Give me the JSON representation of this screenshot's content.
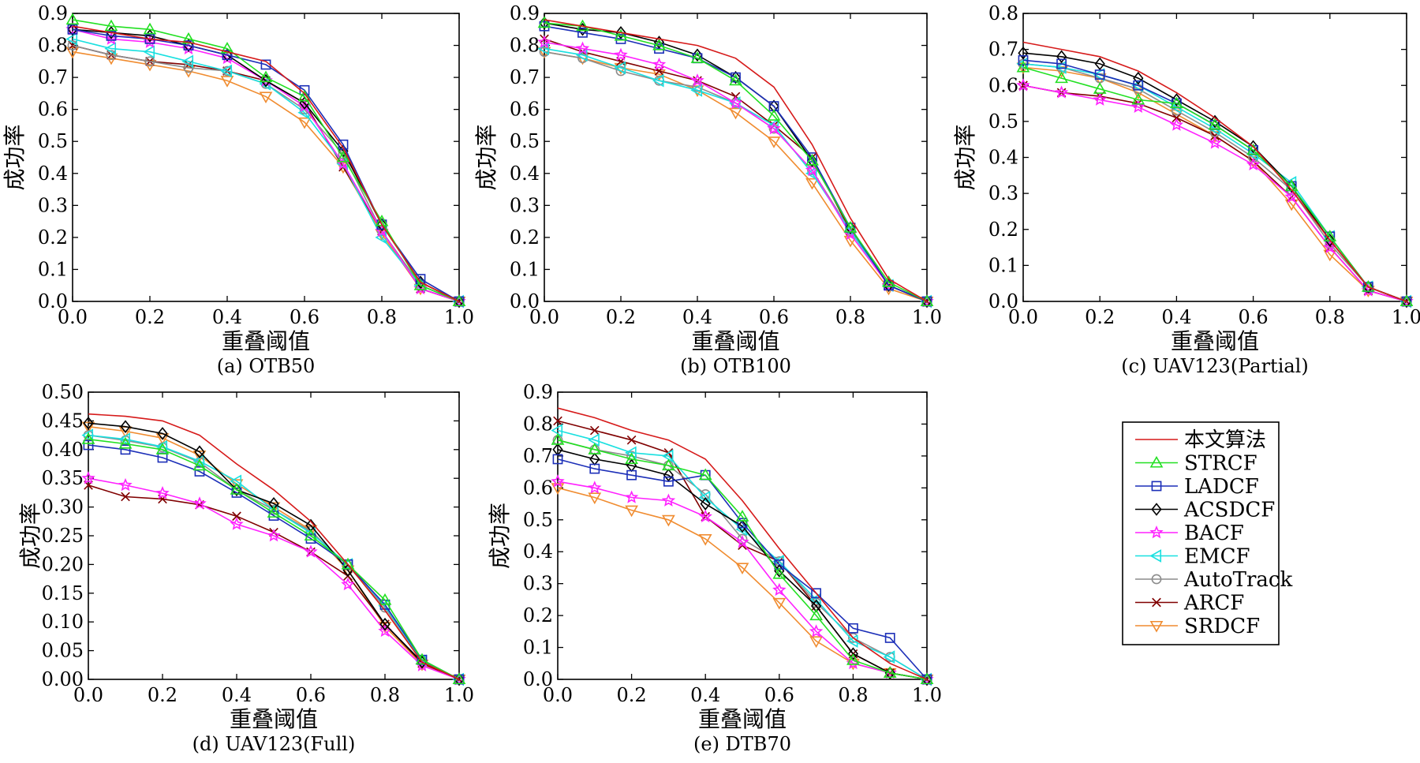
{
  "chart_data": [
    {
      "type": "line",
      "caption": "(a) OTB50",
      "xlabel": "重叠阈值",
      "ylabel": "成功率",
      "xlim": [
        0,
        1.0
      ],
      "ylim": [
        0,
        0.9
      ],
      "xticks": [
        "0.0",
        "0.2",
        "0.4",
        "0.6",
        "0.8",
        "1.0"
      ],
      "yticks": [
        "0.0",
        "0.1",
        "0.2",
        "0.3",
        "0.4",
        "0.5",
        "0.6",
        "0.7",
        "0.8",
        "0.9"
      ],
      "x": [
        0,
        0.1,
        0.2,
        0.3,
        0.4,
        0.5,
        0.6,
        0.7,
        0.8,
        0.9,
        1.0
      ],
      "series": [
        {
          "name": "本文算法",
          "values": [
            0.86,
            0.84,
            0.82,
            0.81,
            0.78,
            0.75,
            0.65,
            0.48,
            0.24,
            0.06,
            0.0
          ]
        },
        {
          "name": "STRCF",
          "values": [
            0.88,
            0.86,
            0.85,
            0.82,
            0.79,
            0.7,
            0.64,
            0.45,
            0.25,
            0.05,
            0.0
          ]
        },
        {
          "name": "LADCF",
          "values": [
            0.85,
            0.83,
            0.82,
            0.8,
            0.77,
            0.74,
            0.66,
            0.49,
            0.24,
            0.07,
            0.0
          ]
        },
        {
          "name": "ACSDCF",
          "values": [
            0.85,
            0.84,
            0.83,
            0.8,
            0.77,
            0.69,
            0.62,
            0.47,
            0.24,
            0.06,
            0.0
          ]
        },
        {
          "name": "BACF",
          "values": [
            0.85,
            0.82,
            0.81,
            0.79,
            0.76,
            0.69,
            0.61,
            0.43,
            0.22,
            0.04,
            0.0
          ]
        },
        {
          "name": "EMCF",
          "values": [
            0.82,
            0.79,
            0.78,
            0.75,
            0.72,
            0.68,
            0.59,
            0.43,
            0.2,
            0.05,
            0.0
          ]
        },
        {
          "name": "AutoTrack",
          "values": [
            0.8,
            0.77,
            0.75,
            0.73,
            0.72,
            0.68,
            0.6,
            0.46,
            0.22,
            0.05,
            0.0
          ]
        },
        {
          "name": "ARCF",
          "values": [
            0.8,
            0.77,
            0.75,
            0.74,
            0.72,
            0.69,
            0.62,
            0.42,
            0.22,
            0.04,
            0.0
          ]
        },
        {
          "name": "SRDCF",
          "values": [
            0.78,
            0.76,
            0.74,
            0.72,
            0.69,
            0.64,
            0.56,
            0.42,
            0.21,
            0.04,
            0.0
          ]
        }
      ]
    },
    {
      "type": "line",
      "caption": "(b) OTB100",
      "xlabel": "重叠阈值",
      "ylabel": "成功率",
      "xlim": [
        0,
        1.0
      ],
      "ylim": [
        0,
        0.9
      ],
      "xticks": [
        "0.0",
        "0.2",
        "0.4",
        "0.6",
        "0.8",
        "1.0"
      ],
      "yticks": [
        "0.0",
        "0.1",
        "0.2",
        "0.3",
        "0.4",
        "0.5",
        "0.6",
        "0.7",
        "0.8",
        "0.9"
      ],
      "x": [
        0,
        0.1,
        0.2,
        0.3,
        0.4,
        0.5,
        0.6,
        0.7,
        0.8,
        0.9,
        1.0
      ],
      "series": [
        {
          "name": "本文算法",
          "values": [
            0.88,
            0.86,
            0.84,
            0.82,
            0.8,
            0.76,
            0.67,
            0.49,
            0.26,
            0.07,
            0.0
          ]
        },
        {
          "name": "STRCF",
          "values": [
            0.87,
            0.86,
            0.83,
            0.8,
            0.76,
            0.69,
            0.58,
            0.44,
            0.23,
            0.06,
            0.0
          ]
        },
        {
          "name": "LADCF",
          "values": [
            0.86,
            0.84,
            0.82,
            0.79,
            0.76,
            0.7,
            0.61,
            0.45,
            0.23,
            0.05,
            0.0
          ]
        },
        {
          "name": "ACSDCF",
          "values": [
            0.87,
            0.85,
            0.84,
            0.81,
            0.77,
            0.7,
            0.61,
            0.44,
            0.23,
            0.05,
            0.0
          ]
        },
        {
          "name": "BACF",
          "values": [
            0.81,
            0.79,
            0.77,
            0.74,
            0.69,
            0.62,
            0.54,
            0.41,
            0.21,
            0.05,
            0.0
          ]
        },
        {
          "name": "EMCF",
          "values": [
            0.79,
            0.77,
            0.73,
            0.69,
            0.66,
            0.62,
            0.55,
            0.4,
            0.22,
            0.05,
            0.0
          ]
        },
        {
          "name": "AutoTrack",
          "values": [
            0.78,
            0.76,
            0.72,
            0.69,
            0.67,
            0.62,
            0.54,
            0.41,
            0.22,
            0.05,
            0.0
          ]
        },
        {
          "name": "ARCF",
          "values": [
            0.82,
            0.78,
            0.75,
            0.72,
            0.69,
            0.64,
            0.55,
            0.45,
            0.22,
            0.05,
            0.0
          ]
        },
        {
          "name": "SRDCF",
          "values": [
            0.78,
            0.76,
            0.73,
            0.71,
            0.66,
            0.59,
            0.5,
            0.37,
            0.19,
            0.04,
            0.0
          ]
        }
      ]
    },
    {
      "type": "line",
      "caption": "(c) UAV123(Partial)",
      "xlabel": "重叠阈值",
      "ylabel": "成功率",
      "xlim": [
        0,
        1.0
      ],
      "ylim": [
        0,
        0.8
      ],
      "xticks": [
        "0.0",
        "0.2",
        "0.4",
        "0.6",
        "0.8",
        "1.0"
      ],
      "yticks": [
        "0.0",
        "0.1",
        "0.2",
        "0.3",
        "0.4",
        "0.5",
        "0.6",
        "0.7",
        "0.8"
      ],
      "x": [
        0,
        0.1,
        0.2,
        0.3,
        0.4,
        0.5,
        0.6,
        0.7,
        0.8,
        0.9,
        1.0
      ],
      "series": [
        {
          "name": "本文算法",
          "values": [
            0.72,
            0.7,
            0.68,
            0.64,
            0.58,
            0.51,
            0.43,
            0.31,
            0.17,
            0.04,
            0.0
          ]
        },
        {
          "name": "STRCF",
          "values": [
            0.65,
            0.62,
            0.59,
            0.56,
            0.55,
            0.49,
            0.42,
            0.32,
            0.18,
            0.04,
            0.0
          ]
        },
        {
          "name": "LADCF",
          "values": [
            0.67,
            0.66,
            0.63,
            0.6,
            0.55,
            0.49,
            0.42,
            0.32,
            0.18,
            0.04,
            0.0
          ]
        },
        {
          "name": "ACSDCF",
          "values": [
            0.69,
            0.68,
            0.66,
            0.62,
            0.56,
            0.5,
            0.43,
            0.32,
            0.17,
            0.04,
            0.0
          ]
        },
        {
          "name": "BACF",
          "values": [
            0.6,
            0.58,
            0.56,
            0.54,
            0.49,
            0.44,
            0.38,
            0.29,
            0.15,
            0.03,
            0.0
          ]
        },
        {
          "name": "EMCF",
          "values": [
            0.66,
            0.65,
            0.63,
            0.6,
            0.54,
            0.48,
            0.41,
            0.33,
            0.18,
            0.04,
            0.0
          ]
        },
        {
          "name": "AutoTrack",
          "values": [
            0.66,
            0.65,
            0.62,
            0.59,
            0.53,
            0.47,
            0.4,
            0.31,
            0.16,
            0.04,
            0.0
          ]
        },
        {
          "name": "ARCF",
          "values": [
            0.6,
            0.58,
            0.57,
            0.55,
            0.51,
            0.46,
            0.39,
            0.29,
            0.15,
            0.03,
            0.0
          ]
        },
        {
          "name": "SRDCF",
          "values": [
            0.65,
            0.64,
            0.62,
            0.58,
            0.52,
            0.46,
            0.39,
            0.27,
            0.13,
            0.03,
            0.0
          ]
        }
      ]
    },
    {
      "type": "line",
      "caption": "(d) UAV123(Full)",
      "xlabel": "重叠阈值",
      "ylabel": "成功率",
      "xlim": [
        0,
        1.0
      ],
      "ylim": [
        0,
        0.5
      ],
      "xticks": [
        "0.0",
        "0.2",
        "0.4",
        "0.6",
        "0.8",
        "1.0"
      ],
      "yticks": [
        "0.00",
        "0.05",
        "0.10",
        "0.15",
        "0.20",
        "0.25",
        "0.30",
        "0.35",
        "0.40",
        "0.45",
        "0.50"
      ],
      "x": [
        0,
        0.1,
        0.2,
        0.3,
        0.4,
        0.5,
        0.6,
        0.7,
        0.8,
        0.9,
        1.0
      ],
      "series": [
        {
          "name": "本文算法",
          "values": [
            0.462,
            0.458,
            0.45,
            0.425,
            0.375,
            0.33,
            0.275,
            0.2,
            0.12,
            0.03,
            0.0
          ]
        },
        {
          "name": "STRCF",
          "values": [
            0.418,
            0.41,
            0.4,
            0.372,
            0.33,
            0.29,
            0.25,
            0.2,
            0.138,
            0.034,
            0.0
          ]
        },
        {
          "name": "LADCF",
          "values": [
            0.408,
            0.4,
            0.386,
            0.362,
            0.325,
            0.285,
            0.245,
            0.2,
            0.13,
            0.034,
            0.0
          ]
        },
        {
          "name": "ACSDCF",
          "values": [
            0.446,
            0.44,
            0.428,
            0.396,
            0.33,
            0.306,
            0.268,
            0.19,
            0.096,
            0.03,
            0.0
          ]
        },
        {
          "name": "BACF",
          "values": [
            0.35,
            0.338,
            0.324,
            0.306,
            0.27,
            0.25,
            0.222,
            0.165,
            0.084,
            0.024,
            0.0
          ]
        },
        {
          "name": "EMCF",
          "values": [
            0.425,
            0.418,
            0.405,
            0.38,
            0.345,
            0.295,
            0.255,
            0.2,
            0.128,
            0.032,
            0.0
          ]
        },
        {
          "name": "AutoTrack",
          "values": [
            0.425,
            0.416,
            0.404,
            0.378,
            0.33,
            0.295,
            0.258,
            0.198,
            0.125,
            0.032,
            0.0
          ]
        },
        {
          "name": "ARCF",
          "values": [
            0.338,
            0.318,
            0.314,
            0.304,
            0.284,
            0.256,
            0.222,
            0.18,
            0.096,
            0.028,
            0.0
          ]
        },
        {
          "name": "SRDCF",
          "values": [
            0.44,
            0.432,
            0.42,
            0.39,
            0.34,
            0.3,
            0.26,
            0.19,
            0.092,
            0.026,
            0.0
          ]
        }
      ]
    },
    {
      "type": "line",
      "caption": "(e) DTB70",
      "xlabel": "重叠阈值",
      "ylabel": "成功率",
      "xlim": [
        0,
        1.0
      ],
      "ylim": [
        0,
        0.9
      ],
      "xticks": [
        "0.0",
        "0.2",
        "0.4",
        "0.6",
        "0.8",
        "1.0"
      ],
      "yticks": [
        "0.0",
        "0.1",
        "0.2",
        "0.3",
        "0.4",
        "0.5",
        "0.6",
        "0.7",
        "0.8",
        "0.9"
      ],
      "x": [
        0,
        0.1,
        0.2,
        0.3,
        0.4,
        0.5,
        0.6,
        0.7,
        0.8,
        0.9,
        1.0
      ],
      "series": [
        {
          "name": "本文算法",
          "values": [
            0.85,
            0.82,
            0.78,
            0.75,
            0.69,
            0.56,
            0.41,
            0.27,
            0.13,
            0.05,
            0.0
          ]
        },
        {
          "name": "STRCF",
          "values": [
            0.75,
            0.72,
            0.69,
            0.67,
            0.64,
            0.51,
            0.33,
            0.2,
            0.06,
            0.02,
            0.0
          ]
        },
        {
          "name": "LADCF",
          "values": [
            0.69,
            0.66,
            0.64,
            0.62,
            0.64,
            0.49,
            0.36,
            0.27,
            0.16,
            0.13,
            0.0
          ]
        },
        {
          "name": "ACSDCF",
          "values": [
            0.72,
            0.69,
            0.67,
            0.64,
            0.55,
            0.48,
            0.34,
            0.23,
            0.08,
            0.02,
            0.0
          ]
        },
        {
          "name": "BACF",
          "values": [
            0.62,
            0.6,
            0.57,
            0.56,
            0.51,
            0.43,
            0.28,
            0.15,
            0.05,
            0.02,
            0.0
          ]
        },
        {
          "name": "EMCF",
          "values": [
            0.78,
            0.75,
            0.71,
            0.7,
            0.57,
            0.47,
            0.37,
            0.25,
            0.12,
            0.07,
            0.0
          ]
        },
        {
          "name": "AutoTrack",
          "values": [
            0.75,
            0.72,
            0.7,
            0.67,
            0.58,
            0.44,
            0.37,
            0.24,
            0.13,
            0.07,
            0.0
          ]
        },
        {
          "name": "ARCF",
          "values": [
            0.81,
            0.78,
            0.75,
            0.71,
            0.51,
            0.42,
            0.37,
            0.23,
            0.08,
            0.02,
            0.0
          ]
        },
        {
          "name": "SRDCF",
          "values": [
            0.6,
            0.57,
            0.53,
            0.5,
            0.44,
            0.35,
            0.24,
            0.12,
            0.05,
            0.02,
            0.0
          ]
        }
      ]
    }
  ],
  "legend": {
    "items": [
      {
        "name": "本文算法",
        "color": "#d61a1a",
        "marker": "none"
      },
      {
        "name": "STRCF",
        "color": "#22e022",
        "marker": "triangle-up"
      },
      {
        "name": "LADCF",
        "color": "#1c2fb8",
        "marker": "square"
      },
      {
        "name": "ACSDCF",
        "color": "#000000",
        "marker": "diamond"
      },
      {
        "name": "BACF",
        "color": "#ff22ff",
        "marker": "star"
      },
      {
        "name": "EMCF",
        "color": "#19e0e0",
        "marker": "triangle-left"
      },
      {
        "name": "AutoTrack",
        "color": "#8c8c8c",
        "marker": "circle"
      },
      {
        "name": "ARCF",
        "color": "#800000",
        "marker": "x"
      },
      {
        "name": "SRDCF",
        "color": "#f08c30",
        "marker": "triangle-down"
      }
    ]
  }
}
